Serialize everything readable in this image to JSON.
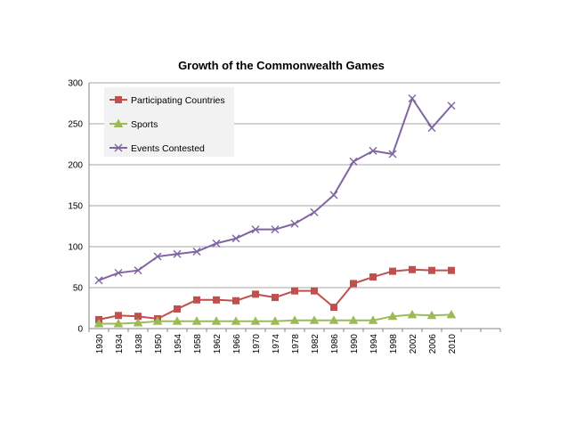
{
  "chart_data": {
    "type": "line",
    "title": "Growth of the Commonwealth Games",
    "xlabel": "",
    "ylabel": "",
    "ylim": [
      0,
      300
    ],
    "yticks": [
      0,
      50,
      100,
      150,
      200,
      250,
      300
    ],
    "grid": true,
    "legend_position": "top-left",
    "categories": [
      "1930",
      "1934",
      "1938",
      "1950",
      "1954",
      "1958",
      "1962",
      "1966",
      "1970",
      "1974",
      "1978",
      "1982",
      "1986",
      "1990",
      "1994",
      "1998",
      "2002",
      "2006",
      "2010"
    ],
    "series": [
      {
        "name": "Participating Countries",
        "color": "#c0504d",
        "marker": "square",
        "values": [
          11,
          16,
          15,
          12,
          24,
          35,
          35,
          34,
          42,
          38,
          46,
          46,
          26,
          55,
          63,
          70,
          72,
          71,
          71
        ]
      },
      {
        "name": "Sports",
        "color": "#9bbb59",
        "marker": "triangle",
        "values": [
          6,
          6,
          7,
          9,
          9,
          9,
          9,
          9,
          9,
          9,
          10,
          10,
          10,
          10,
          10,
          15,
          17,
          16,
          17
        ]
      },
      {
        "name": "Events Contested",
        "color": "#8064a2",
        "marker": "x",
        "values": [
          59,
          68,
          71,
          88,
          91,
          94,
          104,
          110,
          121,
          121,
          128,
          142,
          163,
          204,
          217,
          213,
          281,
          245,
          272
        ]
      }
    ]
  }
}
